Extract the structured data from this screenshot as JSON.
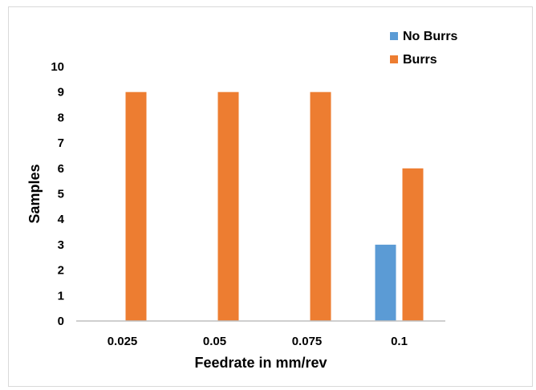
{
  "chart_data": {
    "type": "bar",
    "title": "",
    "xlabel": "Feedrate in mm/rev",
    "ylabel": "Samples",
    "categories": [
      "0.025",
      "0.05",
      "0.075",
      "0.1"
    ],
    "series": [
      {
        "name": "No Burrs",
        "color": "#5b9bd5",
        "values": [
          0,
          0,
          0,
          3
        ]
      },
      {
        "name": "Burrs",
        "color": "#ed7d31",
        "values": [
          9,
          9,
          9,
          6
        ]
      }
    ],
    "ylim": [
      0,
      10
    ],
    "yticks": [
      "0",
      "1",
      "2",
      "3",
      "4",
      "5",
      "6",
      "7",
      "8",
      "9",
      "10"
    ],
    "grid": false,
    "legend_position": "top-right"
  }
}
